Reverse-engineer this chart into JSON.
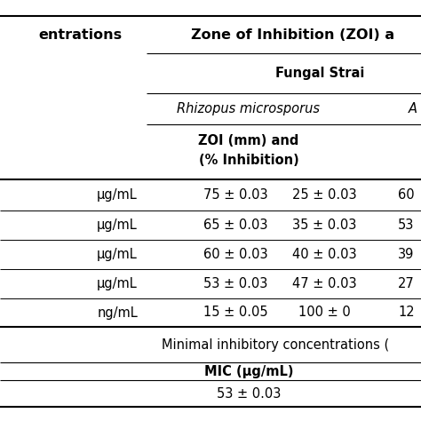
{
  "title_text": "Zone of Inhibition (ZOI) a",
  "left_header": "entrations",
  "fungal_header": "Fungal Strai",
  "rhizopus_text": "Rhizopus microsporus",
  "rhizopus_right": "A",
  "zoi_line1": "ZOI (mm) and",
  "zoi_line2": "(% Inhibition)",
  "col_suffix": [
    "μg/mL",
    "μg/mL",
    "μg/mL",
    "μg/mL",
    "ng/mL"
  ],
  "data_col1": [
    "75 ± 0.03",
    "65 ± 0.03",
    "60 ± 0.03",
    "53 ± 0.03",
    "15 ± 0.05"
  ],
  "data_col2": [
    "25 ± 0.03",
    "35 ± 0.03",
    "40 ± 0.03",
    "47 ± 0.03",
    "100 ± 0"
  ],
  "data_col3": [
    "60",
    "53",
    "39",
    "27",
    "12"
  ],
  "mic_label": "Minimal inhibitory concentrations (",
  "mic_unit": "MIC (μg/mL)",
  "mic_value": "53 ± 0.03",
  "bg_color": "#ffffff",
  "line_color": "#000000",
  "font_size": 10.5
}
